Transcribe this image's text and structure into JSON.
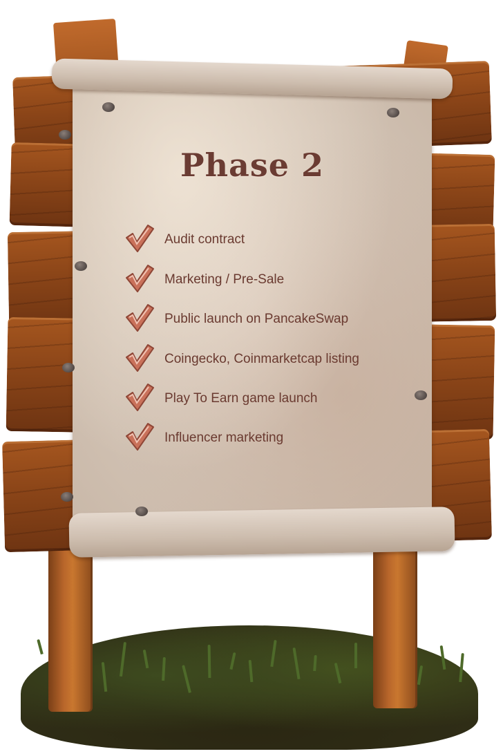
{
  "sign": {
    "title": "Phase 2",
    "items": [
      {
        "label": "Audit contract",
        "icon": "checkmark-icon"
      },
      {
        "label": "Marketing / Pre-Sale",
        "icon": "checkmark-icon"
      },
      {
        "label": "Public launch on PancakeSwap",
        "icon": "checkmark-icon"
      },
      {
        "label": "Coingecko, Coinmarketcap listing",
        "icon": "checkmark-icon"
      },
      {
        "label": "Play To Earn game launch",
        "icon": "checkmark-icon"
      },
      {
        "label": "Influencer marketing",
        "icon": "checkmark-icon"
      }
    ]
  },
  "colors": {
    "wood": "#8b4518",
    "parchment": "#d6c8bb",
    "text": "#6a3a30",
    "check": "#c9715a",
    "grass": "#2f2d16"
  }
}
